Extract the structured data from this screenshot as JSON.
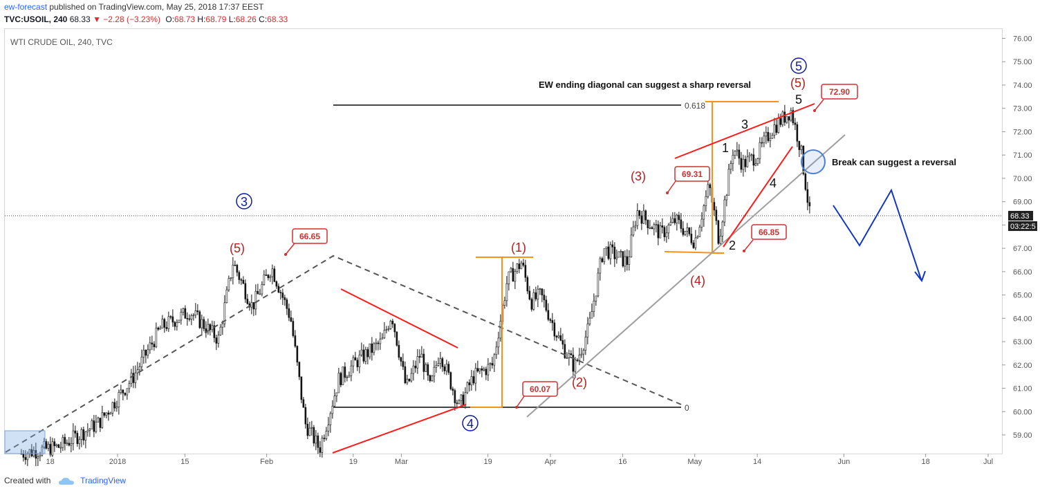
{
  "header": {
    "author": "ew-forecast",
    "published_text": "published on TradingView.com, May 25, 2018 17:37 EEST",
    "symbol": "TVC:USOIL, 240",
    "last": "68.33",
    "change": "▼ −2.28 (−3.23%)",
    "open_label": "O:",
    "open": "68.73",
    "high_label": "H:",
    "high": "68.79",
    "low_label": "L:",
    "low": "68.26",
    "close_label": "C:",
    "close": "68.33"
  },
  "footer": {
    "created_with": "Created with",
    "brand": "TradingView"
  },
  "colors": {
    "wave_red": "#b71c1c",
    "wave_blue": "#0d1a9e",
    "line_red": "#ff1a1a",
    "orange": "#f7931a",
    "gray": "#9e9e9e",
    "candle": "#111111",
    "arrow": "#1034c7"
  },
  "chart_data": {
    "type": "candlestick",
    "title": "WTI CRUDE OIL, 240, TVC",
    "ylim": [
      58.2,
      76.4
    ],
    "y_ticks": [
      "59.00",
      "60.00",
      "61.00",
      "62.00",
      "63.00",
      "64.00",
      "65.00",
      "66.00",
      "67.00",
      "68.00",
      "69.00",
      "70.00",
      "71.00",
      "72.00",
      "73.00",
      "74.00",
      "75.00",
      "76.00"
    ],
    "x_tick_labels": [
      "18",
      "2018",
      "15",
      "Feb",
      "19",
      "Mar",
      "19",
      "Apr",
      "16",
      "May",
      "14",
      "Jun",
      "18",
      "Jul"
    ],
    "last_price": "68.33",
    "countdown": "03:22:5",
    "price_path": [
      [
        "2017-12-12",
        58.2
      ],
      [
        "2017-12-20",
        58.5
      ],
      [
        "2017-12-28",
        59.5
      ],
      [
        "2018-01-04",
        61.4
      ],
      [
        "2018-01-10",
        63.6
      ],
      [
        "2018-01-16",
        64.3
      ],
      [
        "2018-01-22",
        63.1
      ],
      [
        "2018-01-25",
        66.4
      ],
      [
        "2018-01-29",
        64.5
      ],
      [
        "2018-02-02",
        66.2
      ],
      [
        "2018-02-06",
        64.0
      ],
      [
        "2018-02-09",
        59.5
      ],
      [
        "2018-02-12",
        58.4
      ],
      [
        "2018-02-16",
        61.4
      ],
      [
        "2018-02-20",
        62.2
      ],
      [
        "2018-02-25",
        63.0
      ],
      [
        "2018-02-27",
        64.2
      ],
      [
        "2018-03-02",
        61.0
      ],
      [
        "2018-03-05",
        62.5
      ],
      [
        "2018-03-07",
        61.0
      ],
      [
        "2018-03-09",
        62.6
      ],
      [
        "2018-03-13",
        60.2
      ],
      [
        "2018-03-16",
        61.5
      ],
      [
        "2018-03-20",
        62.0
      ],
      [
        "2018-03-23",
        65.6
      ],
      [
        "2018-03-26",
        66.4
      ],
      [
        "2018-03-28",
        64.7
      ],
      [
        "2018-03-30",
        65.0
      ],
      [
        "2018-04-03",
        63.0
      ],
      [
        "2018-04-06",
        61.9
      ],
      [
        "2018-04-09",
        63.6
      ],
      [
        "2018-04-12",
        67.0
      ],
      [
        "2018-04-17",
        66.4
      ],
      [
        "2018-04-19",
        68.6
      ],
      [
        "2018-04-24",
        67.6
      ],
      [
        "2018-04-27",
        68.2
      ],
      [
        "2018-05-01",
        67.3
      ],
      [
        "2018-05-04",
        69.7
      ],
      [
        "2018-05-06",
        67.4
      ],
      [
        "2018-05-09",
        71.3
      ],
      [
        "2018-05-11",
        70.6
      ],
      [
        "2018-05-14",
        71.0
      ],
      [
        "2018-05-17",
        72.1
      ],
      [
        "2018-05-21",
        72.9
      ],
      [
        "2018-05-23",
        71.3
      ],
      [
        "2018-05-25",
        68.3
      ]
    ],
    "annotations": {
      "waves_red": [
        "(5)",
        "(1)",
        "(2)",
        "(3)",
        "(4)",
        "(5)"
      ],
      "waves_blue": [
        "3",
        "4",
        "5"
      ],
      "waves_black": [
        "1",
        "2",
        "3",
        "4",
        "5"
      ],
      "price_tags": [
        "66.65",
        "60.07",
        "69.31",
        "66.85",
        "72.90"
      ],
      "fib_labels": [
        "0.618",
        "0"
      ],
      "texts": [
        "EW ending diagonal can suggest a sharp reversal",
        "Break can suggest a reversal"
      ]
    }
  }
}
